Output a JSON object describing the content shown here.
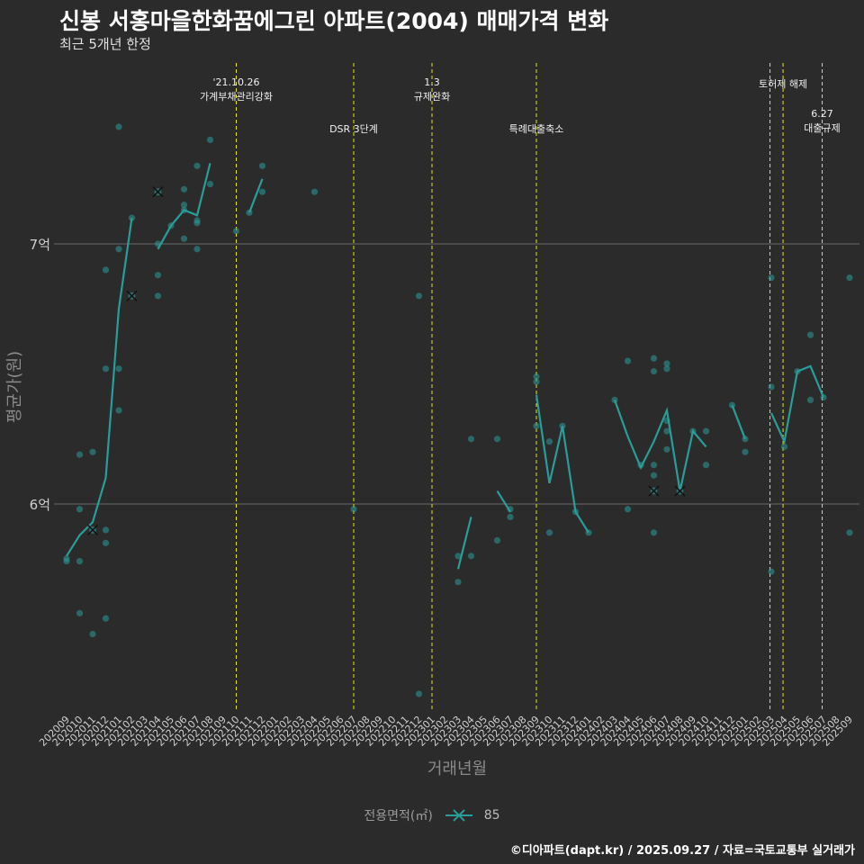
{
  "title": "신봉 서홍마을한화꿈에그린 아파트(2004) 매매가격 변화",
  "subtitle": "최근 5개년 한정",
  "caption": "©디아파트(dapt.kr) / 2025.09.27 / 자료=국토교통부 실거래가",
  "colors": {
    "background": "#2b2b2b",
    "series": "#2a9d9a",
    "vline": "#e6e619",
    "grid": "#6a6a6a"
  },
  "chart_data": {
    "type": "line",
    "xlabel": "거래년월",
    "ylabel": "평균가(원)",
    "y_ticks": [
      {
        "value": 6.0,
        "label": "6억"
      },
      {
        "value": 7.0,
        "label": "7억"
      }
    ],
    "ylim": [
      5.2,
      7.75
    ],
    "categories": [
      "202009",
      "202010",
      "202011",
      "202012",
      "202101",
      "202102",
      "202103",
      "202104",
      "202105",
      "202106",
      "202107",
      "202108",
      "202109",
      "202110",
      "202111",
      "202112",
      "202201",
      "202202",
      "202203",
      "202204",
      "202205",
      "202206",
      "202207",
      "202208",
      "202209",
      "202210",
      "202211",
      "202212",
      "202301",
      "202302",
      "202303",
      "202304",
      "202305",
      "202306",
      "202307",
      "202308",
      "202309",
      "202310",
      "202311",
      "202312",
      "202401",
      "202402",
      "202403",
      "202404",
      "202405",
      "202406",
      "202407",
      "202408",
      "202409",
      "202410",
      "202411",
      "202412",
      "202501",
      "202502",
      "202503",
      "202504",
      "202505",
      "202506",
      "202507",
      "202508",
      "202509"
    ],
    "legend": {
      "title": "전용면적(㎡)",
      "entry": "85"
    },
    "series": [
      {
        "name": "85",
        "line_segments": [
          [
            [
              "202009",
              5.8
            ],
            [
              "202010",
              5.88
            ],
            [
              "202011",
              5.93
            ],
            [
              "202012",
              6.1
            ],
            [
              "202101",
              6.75
            ],
            [
              "202102",
              7.1
            ]
          ],
          [
            [
              "202104",
              6.98
            ],
            [
              "202105",
              7.07
            ],
            [
              "202106",
              7.13
            ],
            [
              "202107",
              7.11
            ],
            [
              "202108",
              7.31
            ]
          ],
          [
            [
              "202111",
              7.12
            ],
            [
              "202112",
              7.25
            ]
          ],
          [
            [
              "202303",
              5.75
            ],
            [
              "202304",
              5.95
            ]
          ],
          [
            [
              "202306",
              6.05
            ],
            [
              "202307",
              5.97
            ]
          ],
          [
            [
              "202309",
              6.42
            ],
            [
              "202310",
              6.08
            ],
            [
              "202311",
              6.3
            ],
            [
              "202312",
              5.97
            ],
            [
              "202401",
              5.89
            ]
          ],
          [
            [
              "202403",
              6.4
            ],
            [
              "202404",
              6.26
            ],
            [
              "202405",
              6.14
            ],
            [
              "202406",
              6.24
            ],
            [
              "202407",
              6.36
            ],
            [
              "202408",
              6.05
            ],
            [
              "202409",
              6.28
            ],
            [
              "202410",
              6.22
            ]
          ],
          [
            [
              "202412",
              6.38
            ],
            [
              "202501",
              6.25
            ]
          ],
          [
            [
              "202503",
              6.35
            ],
            [
              "202504",
              6.24
            ],
            [
              "202505",
              6.51
            ],
            [
              "202506",
              6.53
            ],
            [
              "202507",
              6.41
            ]
          ]
        ],
        "points": [
          [
            "202009",
            5.79
          ],
          [
            "202009",
            5.78
          ],
          [
            "202010",
            5.78
          ],
          [
            "202010",
            5.98
          ],
          [
            "202010",
            6.19
          ],
          [
            "202010",
            5.58
          ],
          [
            "202011",
            6.2
          ],
          [
            "202011",
            5.5
          ],
          [
            "202012",
            5.9
          ],
          [
            "202012",
            5.85
          ],
          [
            "202012",
            6.52
          ],
          [
            "202012",
            6.9
          ],
          [
            "202012",
            5.56
          ],
          [
            "202101",
            6.36
          ],
          [
            "202101",
            6.52
          ],
          [
            "202101",
            6.98
          ],
          [
            "202101",
            7.45
          ],
          [
            "202102",
            7.1
          ],
          [
            "202104",
            7.0
          ],
          [
            "202104",
            6.88
          ],
          [
            "202104",
            6.8
          ],
          [
            "202105",
            7.07
          ],
          [
            "202106",
            7.21
          ],
          [
            "202106",
            7.15
          ],
          [
            "202106",
            7.13
          ],
          [
            "202106",
            7.02
          ],
          [
            "202107",
            7.3
          ],
          [
            "202107",
            7.09
          ],
          [
            "202107",
            7.08
          ],
          [
            "202107",
            6.98
          ],
          [
            "202108",
            7.4
          ],
          [
            "202108",
            7.23
          ],
          [
            "202110",
            7.05
          ],
          [
            "202111",
            7.12
          ],
          [
            "202112",
            7.3
          ],
          [
            "202112",
            7.2
          ],
          [
            "202204",
            7.2
          ],
          [
            "202207",
            5.98
          ],
          [
            "202212",
            6.8
          ],
          [
            "202212",
            5.27
          ],
          [
            "202303",
            5.8
          ],
          [
            "202303",
            5.7
          ],
          [
            "202304",
            5.8
          ],
          [
            "202304",
            6.25
          ],
          [
            "202306",
            6.25
          ],
          [
            "202306",
            5.86
          ],
          [
            "202307",
            5.98
          ],
          [
            "202307",
            5.95
          ],
          [
            "202309",
            6.49
          ],
          [
            "202309",
            6.47
          ],
          [
            "202309",
            6.3
          ],
          [
            "202310",
            6.24
          ],
          [
            "202310",
            5.89
          ],
          [
            "202311",
            6.3
          ],
          [
            "202312",
            5.97
          ],
          [
            "202401",
            5.89
          ],
          [
            "202403",
            6.4
          ],
          [
            "202404",
            6.55
          ],
          [
            "202404",
            5.98
          ],
          [
            "202405",
            6.15
          ],
          [
            "202406",
            6.56
          ],
          [
            "202406",
            6.51
          ],
          [
            "202406",
            6.15
          ],
          [
            "202406",
            6.11
          ],
          [
            "202406",
            5.89
          ],
          [
            "202407",
            6.54
          ],
          [
            "202407",
            6.52
          ],
          [
            "202407",
            6.32
          ],
          [
            "202407",
            6.28
          ],
          [
            "202407",
            6.21
          ],
          [
            "202409",
            6.28
          ],
          [
            "202410",
            6.28
          ],
          [
            "202410",
            6.15
          ],
          [
            "202412",
            6.38
          ],
          [
            "202501",
            6.25
          ],
          [
            "202501",
            6.2
          ],
          [
            "202503",
            6.87
          ],
          [
            "202503",
            6.45
          ],
          [
            "202503",
            5.74
          ],
          [
            "202504",
            6.22
          ],
          [
            "202505",
            6.51
          ],
          [
            "202506",
            6.65
          ],
          [
            "202506",
            6.4
          ],
          [
            "202507",
            6.41
          ],
          [
            "202509",
            6.87
          ],
          [
            "202509",
            5.89
          ]
        ],
        "cancelled_points": [
          [
            "202011",
            5.9
          ],
          [
            "202102",
            6.8
          ],
          [
            "202104",
            7.2
          ],
          [
            "202406",
            6.05
          ],
          [
            "202408",
            6.05
          ]
        ]
      }
    ],
    "annotations": [
      {
        "x": 13.0,
        "lines": [
          "'21.10.26",
          "가계부채관리강화"
        ],
        "row": 0
      },
      {
        "x": 22.0,
        "lines": [
          "DSR 3단계"
        ],
        "row": 1
      },
      {
        "x": 28.0,
        "lines": [
          "1.3",
          "규제완화"
        ],
        "row": 0
      },
      {
        "x": 36.0,
        "lines": [
          "특례대출축소"
        ],
        "row": 1
      },
      {
        "x": 53.9,
        "lines": [],
        "row": 0
      },
      {
        "x": 54.9,
        "lines": [
          "토허제 해제"
        ],
        "row": 0.3
      },
      {
        "x": 57.9,
        "lines": [
          "6.27",
          "대출규제"
        ],
        "row": 1.4
      }
    ]
  }
}
